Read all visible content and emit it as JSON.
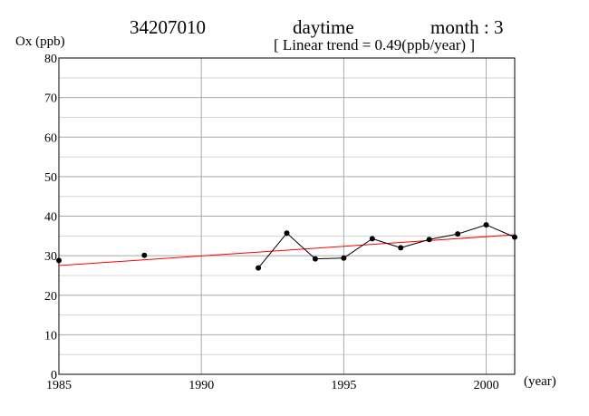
{
  "header": {
    "station": "34207010",
    "period": "daytime",
    "month": "month : 3",
    "trend_text": "[ Linear trend = 0.49(ppb/year) ]"
  },
  "colors": {
    "series": "#000000",
    "trend": "#ff0000",
    "grid": "#b0b0b0"
  },
  "chart_data": {
    "type": "line",
    "title": "",
    "ylabel": "Ox (ppb)",
    "xlabel": "(year)",
    "xlim": [
      1985,
      2001
    ],
    "ylim": [
      0,
      80
    ],
    "x_ticks": [
      1985,
      1990,
      1995,
      2000
    ],
    "y_ticks": [
      0,
      10,
      20,
      30,
      40,
      50,
      60,
      70,
      80
    ],
    "grid": true,
    "series": [
      {
        "points": [
          {
            "x": 1985,
            "y": 28.8
          },
          {
            "x": 1988,
            "y": 30.1
          },
          {
            "x": 1992,
            "y": 26.9
          },
          {
            "x": 1993,
            "y": 35.7
          },
          {
            "x": 1994,
            "y": 29.2
          },
          {
            "x": 1995,
            "y": 29.4
          },
          {
            "x": 1996,
            "y": 34.3
          },
          {
            "x": 1997,
            "y": 32.0
          },
          {
            "x": 1998,
            "y": 34.1
          },
          {
            "x": 1999,
            "y": 35.5
          },
          {
            "x": 2000,
            "y": 37.8
          },
          {
            "x": 2001,
            "y": 34.7
          }
        ]
      }
    ],
    "trend_line": {
      "slope": 0.49,
      "start": {
        "x": 1985,
        "y": 27.5
      },
      "end": {
        "x": 2001,
        "y": 35.3
      }
    }
  }
}
